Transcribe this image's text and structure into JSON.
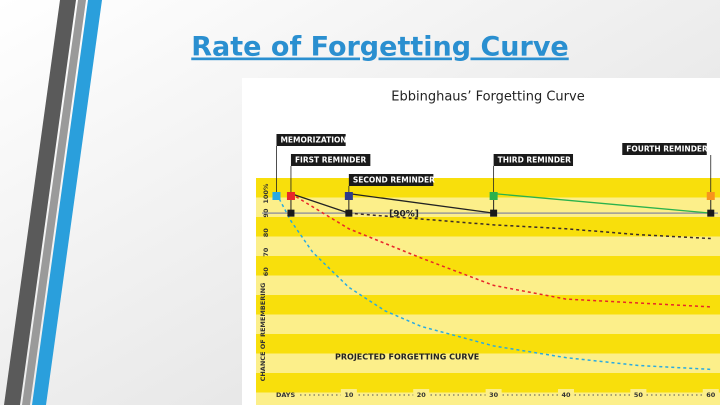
{
  "slide_title": "Rate of Forgetting Curve",
  "chart_data": {
    "type": "line",
    "title": "Ebbinghaus’ Forgetting Curve",
    "xlabel": "DAYS",
    "ylabel": "CHANCE OF REMEMBERING",
    "xlim": [
      -2,
      61
    ],
    "ylim": [
      2,
      108
    ],
    "xticks": [
      10,
      20,
      30,
      40,
      50,
      60
    ],
    "yticks": [
      {
        "value": 100,
        "label": "100%"
      },
      90,
      80,
      70,
      60
    ],
    "series": [
      {
        "color": "#29aae1",
        "dashed": true,
        "x": [
          0,
          2,
          5,
          10,
          15,
          20,
          30,
          40,
          50,
          60
        ],
        "values": [
          100,
          86,
          70,
          52,
          40,
          32,
          22,
          16,
          12,
          10
        ]
      },
      {
        "color": "#e8262a",
        "dashed": true,
        "x": [
          2,
          10,
          20,
          30,
          40,
          50,
          60
        ],
        "values": [
          100,
          82,
          67,
          53,
          46,
          44,
          42
        ]
      },
      {
        "color": "#3a2a2a",
        "dashed": true,
        "x": [
          10,
          20,
          30,
          40,
          50,
          60
        ],
        "values": [
          90,
          87,
          84,
          82,
          79,
          77
        ]
      },
      {
        "color": "#222222",
        "dashed": false,
        "x": [
          2,
          10,
          null,
          10,
          30
        ],
        "values": [
          100,
          90,
          null,
          100,
          90
        ]
      },
      {
        "color": "#2bb24c",
        "dashed": false,
        "x": [
          30,
          60
        ],
        "values": [
          100,
          90
        ]
      }
    ],
    "target": {
      "value": 90,
      "label": "[90%]",
      "color": "#9a9a9a"
    },
    "reminders": [
      {
        "label": "MEMORIZATION",
        "day": 0,
        "color": "#29aae1"
      },
      {
        "label": "FIRST REMINDER",
        "day": 2,
        "color": "#e8262a"
      },
      {
        "label": "SECOND REMINDER",
        "day": 10,
        "color": "#2d3a8c"
      },
      {
        "label": "THIRD REMINDER",
        "day": 30,
        "color": "#2bb24c"
      },
      {
        "label": "FOURTH REMINDER",
        "day": 60,
        "color": "#f7941d"
      }
    ],
    "annotation": "PROJECTED FORGETTING CURVE"
  }
}
